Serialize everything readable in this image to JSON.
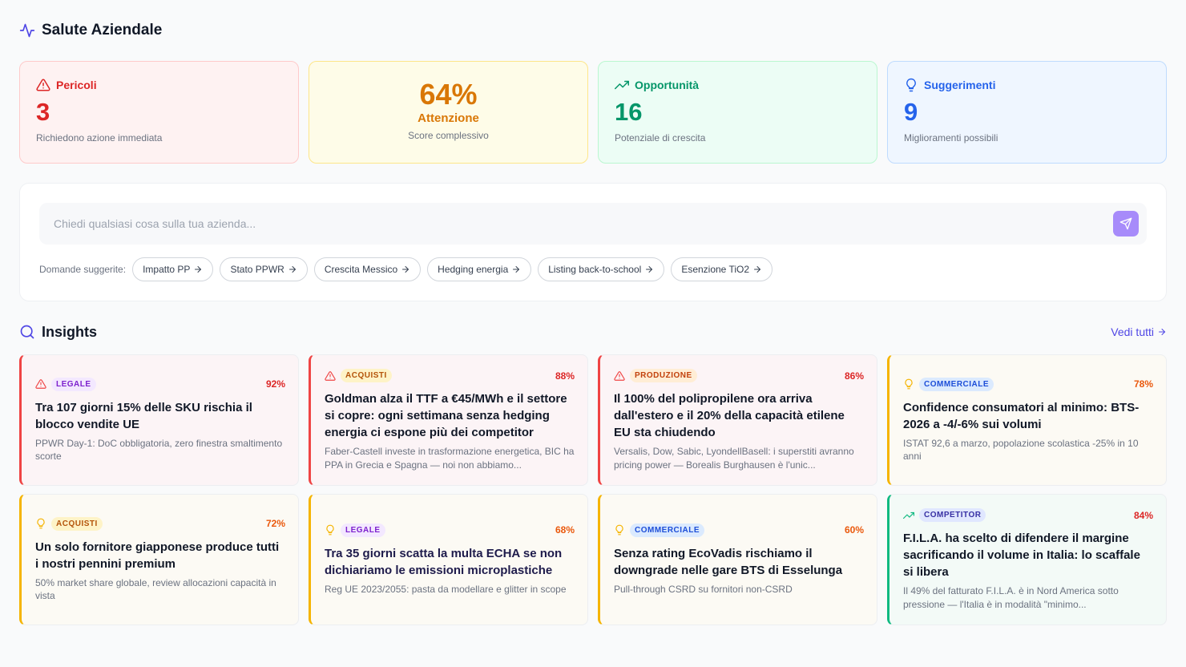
{
  "header": {
    "title": "Salute Aziendale"
  },
  "kpis": [
    {
      "label": "Pericoli",
      "value": "3",
      "caption": "Richiedono azione immediata",
      "color": "#dc2626",
      "bg": "#fef2f2",
      "border": "#fecaca",
      "icon": "warning"
    },
    {
      "value": "64%",
      "label": "Attenzione",
      "caption": "Score complessivo",
      "color": "#d97706",
      "bg": "#fefce8",
      "border": "#fde68a",
      "icon": "none"
    },
    {
      "label": "Opportunità",
      "value": "16",
      "caption": "Potenziale di crescita",
      "color": "#059669",
      "bg": "#ecfdf5",
      "border": "#bbf7d0",
      "icon": "trend"
    },
    {
      "label": "Suggerimenti",
      "value": "9",
      "caption": "Miglioramenti possibili",
      "color": "#2563eb",
      "bg": "#eff6ff",
      "border": "#bfdbfe",
      "icon": "bulb"
    }
  ],
  "search": {
    "placeholder": "Chiedi qualsiasi cosa sulla tua azienda...",
    "suggestions_label": "Domande suggerite:",
    "suggestions": [
      "Impatto PP",
      "Stato PPWR",
      "Crescita Messico",
      "Hedging energia",
      "Listing back-to-school",
      "Esenzione TiO2"
    ]
  },
  "insights": {
    "title": "Insights",
    "link": "Vedi tutti",
    "cards": [
      {
        "category": "LEGALE",
        "score": "92%",
        "title": "Tra 107 giorni 15% delle SKU rischia il blocco vendite UE",
        "description": "PPWR Day-1: DoC obbligatoria, zero finestra smaltimento scorte",
        "icon": "warning",
        "color": "#ef4444",
        "bg": "#fcf4f6",
        "score_color": "#dc2626",
        "badge_bg": "#f3e8ff",
        "badge_color": "#7e22ce",
        "title_color": "#111827"
      },
      {
        "category": "ACQUISTI",
        "score": "88%",
        "title": "Goldman alza il TTF a €45/MWh e il settore si copre: ogni settimana senza hedging energia ci espone più dei competitor",
        "description": "Faber-Castell investe in trasformazione energetica, BIC ha PPA in Grecia e Spagna — noi non abbiamo...",
        "icon": "warning",
        "color": "#ef4444",
        "bg": "#fcf4f6",
        "score_color": "#dc2626",
        "badge_bg": "#fef3c7",
        "badge_color": "#b45309",
        "title_color": "#111827"
      },
      {
        "category": "PRODUZIONE",
        "score": "86%",
        "title": "Il 100% del polipropilene ora arriva dall'estero e il 20% della capacità etilene EU sta chiudendo",
        "description": "Versalis, Dow, Sabic, LyondellBasell: i superstiti avranno pricing power — Borealis Burghausen è l'unic...",
        "icon": "warning",
        "color": "#ef4444",
        "bg": "#fcf4f6",
        "score_color": "#dc2626",
        "badge_bg": "#ffedd5",
        "badge_color": "#c2410c",
        "title_color": "#111827"
      },
      {
        "category": "COMMERCIALE",
        "score": "78%",
        "title": "Confidence consumatori al minimo: BTS-2026 a -4/-6% sui volumi",
        "description": "ISTAT 92,6 a marzo, popolazione scolastica -25% in 10 anni",
        "icon": "bulb",
        "color": "#f5b400",
        "bg": "#fcfaf4",
        "score_color": "#ea580c",
        "badge_bg": "#dbeafe",
        "badge_color": "#1d4ed8",
        "title_color": "#111827"
      },
      {
        "category": "ACQUISTI",
        "score": "72%",
        "title": "Un solo fornitore giapponese produce tutti i nostri pennini premium",
        "description": "50% market share globale, review allocazioni capacità in vista",
        "icon": "bulb",
        "color": "#f5b400",
        "bg": "#fcfaf4",
        "score_color": "#ea580c",
        "badge_bg": "#fef3c7",
        "badge_color": "#b45309",
        "title_color": "#111827"
      },
      {
        "category": "LEGALE",
        "score": "68%",
        "title": "Tra 35 giorni scatta la multa ECHA se non dichiariamo le emissioni microplastiche",
        "description": "Reg UE 2023/2055: pasta da modellare e glitter in scope",
        "icon": "bulb",
        "color": "#f5b400",
        "bg": "#fcfaf4",
        "score_color": "#ea580c",
        "badge_bg": "#f3e8ff",
        "badge_color": "#7e22ce",
        "title_color": "#1e1b4b"
      },
      {
        "category": "COMMERCIALE",
        "score": "60%",
        "title": "Senza rating EcoVadis rischiamo il downgrade nelle gare BTS di Esselunga",
        "description": "Pull-through CSRD su fornitori non-CSRD",
        "icon": "bulb",
        "color": "#f5b400",
        "bg": "#fcfaf4",
        "score_color": "#ea580c",
        "badge_bg": "#dbeafe",
        "badge_color": "#1d4ed8",
        "title_color": "#111827"
      },
      {
        "category": "COMPETITOR",
        "score": "84%",
        "title": "F.I.L.A. ha scelto di difendere il margine sacrificando il volume in Italia: lo scaffale si libera",
        "description": "Il 49% del fatturato F.I.L.A. è in Nord America sotto pressione — l'Italia è in modalità \"minimo...",
        "icon": "trend",
        "color": "#10b981",
        "bg": "#f3faf7",
        "score_color": "#dc2626",
        "badge_bg": "#e0e7ff",
        "badge_color": "#3730a3",
        "title_color": "#111827"
      }
    ]
  }
}
